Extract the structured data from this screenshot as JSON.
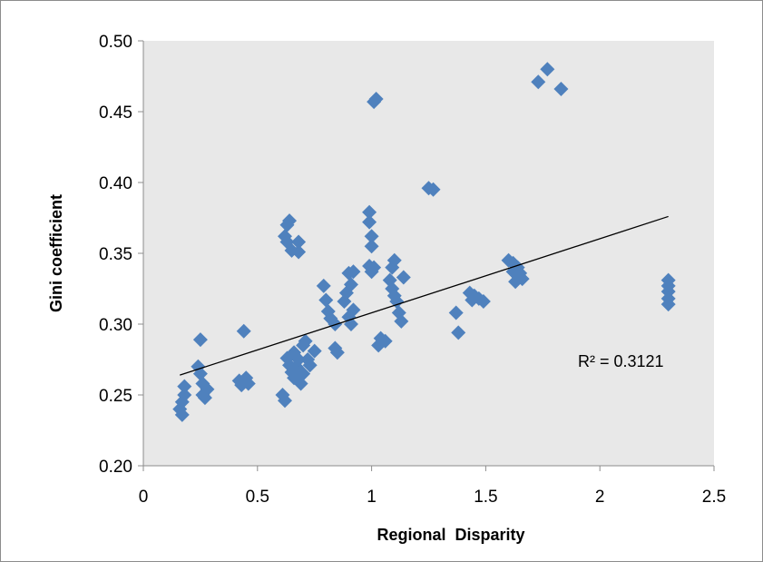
{
  "chart_data": {
    "type": "scatter",
    "title": "",
    "xlabel": "Regional  Disparity",
    "ylabel": "Gini coefficient",
    "xlim": [
      0,
      2.5
    ],
    "ylim": [
      0.2,
      0.5
    ],
    "x_ticks": [
      "0",
      "0.5",
      "1",
      "1.5",
      "2",
      "2.5"
    ],
    "y_ticks": [
      "0.20",
      "0.25",
      "0.30",
      "0.35",
      "0.40",
      "0.45",
      "0.50"
    ],
    "grid": false,
    "legend": "none",
    "marker": "diamond",
    "colors": {
      "plot_area": "#e8e8e8",
      "marker": "#4f81bd",
      "trendline": "#000000"
    },
    "trendline": {
      "type": "linear",
      "x": [
        0.16,
        2.3
      ],
      "y": [
        0.264,
        0.376
      ]
    },
    "annotation": "R² = 0.3121",
    "points": [
      {
        "x": 0.16,
        "y": 0.24
      },
      {
        "x": 0.17,
        "y": 0.236
      },
      {
        "x": 0.17,
        "y": 0.245
      },
      {
        "x": 0.18,
        "y": 0.25
      },
      {
        "x": 0.18,
        "y": 0.256
      },
      {
        "x": 0.24,
        "y": 0.27
      },
      {
        "x": 0.25,
        "y": 0.289
      },
      {
        "x": 0.25,
        "y": 0.265
      },
      {
        "x": 0.26,
        "y": 0.258
      },
      {
        "x": 0.26,
        "y": 0.25
      },
      {
        "x": 0.27,
        "y": 0.248
      },
      {
        "x": 0.28,
        "y": 0.254
      },
      {
        "x": 0.42,
        "y": 0.26
      },
      {
        "x": 0.43,
        "y": 0.257
      },
      {
        "x": 0.44,
        "y": 0.295
      },
      {
        "x": 0.45,
        "y": 0.262
      },
      {
        "x": 0.46,
        "y": 0.258
      },
      {
        "x": 0.61,
        "y": 0.25
      },
      {
        "x": 0.62,
        "y": 0.246
      },
      {
        "x": 0.62,
        "y": 0.362
      },
      {
        "x": 0.63,
        "y": 0.358
      },
      {
        "x": 0.63,
        "y": 0.37
      },
      {
        "x": 0.64,
        "y": 0.373
      },
      {
        "x": 0.63,
        "y": 0.276
      },
      {
        "x": 0.64,
        "y": 0.271
      },
      {
        "x": 0.65,
        "y": 0.266
      },
      {
        "x": 0.65,
        "y": 0.352
      },
      {
        "x": 0.66,
        "y": 0.28
      },
      {
        "x": 0.66,
        "y": 0.262
      },
      {
        "x": 0.67,
        "y": 0.27
      },
      {
        "x": 0.68,
        "y": 0.358
      },
      {
        "x": 0.68,
        "y": 0.351
      },
      {
        "x": 0.68,
        "y": 0.275
      },
      {
        "x": 0.69,
        "y": 0.258
      },
      {
        "x": 0.7,
        "y": 0.285
      },
      {
        "x": 0.7,
        "y": 0.265
      },
      {
        "x": 0.71,
        "y": 0.288
      },
      {
        "x": 0.72,
        "y": 0.275
      },
      {
        "x": 0.73,
        "y": 0.271
      },
      {
        "x": 0.75,
        "y": 0.281
      },
      {
        "x": 0.79,
        "y": 0.327
      },
      {
        "x": 0.8,
        "y": 0.317
      },
      {
        "x": 0.81,
        "y": 0.309
      },
      {
        "x": 0.82,
        "y": 0.304
      },
      {
        "x": 0.84,
        "y": 0.3
      },
      {
        "x": 0.84,
        "y": 0.283
      },
      {
        "x": 0.85,
        "y": 0.28
      },
      {
        "x": 0.88,
        "y": 0.316
      },
      {
        "x": 0.89,
        "y": 0.322
      },
      {
        "x": 0.9,
        "y": 0.336
      },
      {
        "x": 0.9,
        "y": 0.305
      },
      {
        "x": 0.91,
        "y": 0.328
      },
      {
        "x": 0.91,
        "y": 0.3
      },
      {
        "x": 0.92,
        "y": 0.337
      },
      {
        "x": 0.92,
        "y": 0.31
      },
      {
        "x": 0.99,
        "y": 0.379
      },
      {
        "x": 0.99,
        "y": 0.372
      },
      {
        "x": 1.0,
        "y": 0.362
      },
      {
        "x": 1.0,
        "y": 0.355
      },
      {
        "x": 0.99,
        "y": 0.341
      },
      {
        "x": 1.0,
        "y": 0.337
      },
      {
        "x": 1.01,
        "y": 0.34
      },
      {
        "x": 1.01,
        "y": 0.457
      },
      {
        "x": 1.02,
        "y": 0.459
      },
      {
        "x": 1.03,
        "y": 0.285
      },
      {
        "x": 1.04,
        "y": 0.29
      },
      {
        "x": 1.06,
        "y": 0.288
      },
      {
        "x": 1.08,
        "y": 0.331
      },
      {
        "x": 1.09,
        "y": 0.325
      },
      {
        "x": 1.09,
        "y": 0.34
      },
      {
        "x": 1.1,
        "y": 0.32
      },
      {
        "x": 1.1,
        "y": 0.345
      },
      {
        "x": 1.11,
        "y": 0.316
      },
      {
        "x": 1.12,
        "y": 0.308
      },
      {
        "x": 1.13,
        "y": 0.302
      },
      {
        "x": 1.14,
        "y": 0.333
      },
      {
        "x": 1.25,
        "y": 0.396
      },
      {
        "x": 1.27,
        "y": 0.395
      },
      {
        "x": 1.37,
        "y": 0.308
      },
      {
        "x": 1.38,
        "y": 0.294
      },
      {
        "x": 1.43,
        "y": 0.322
      },
      {
        "x": 1.44,
        "y": 0.317
      },
      {
        "x": 1.45,
        "y": 0.32
      },
      {
        "x": 1.47,
        "y": 0.318
      },
      {
        "x": 1.49,
        "y": 0.316
      },
      {
        "x": 1.6,
        "y": 0.345
      },
      {
        "x": 1.62,
        "y": 0.343
      },
      {
        "x": 1.62,
        "y": 0.337
      },
      {
        "x": 1.63,
        "y": 0.33
      },
      {
        "x": 1.64,
        "y": 0.34
      },
      {
        "x": 1.65,
        "y": 0.336
      },
      {
        "x": 1.66,
        "y": 0.332
      },
      {
        "x": 1.73,
        "y": 0.471
      },
      {
        "x": 1.77,
        "y": 0.48
      },
      {
        "x": 1.83,
        "y": 0.466
      },
      {
        "x": 2.3,
        "y": 0.331
      },
      {
        "x": 2.3,
        "y": 0.327
      },
      {
        "x": 2.3,
        "y": 0.323
      },
      {
        "x": 2.3,
        "y": 0.318
      },
      {
        "x": 2.3,
        "y": 0.314
      }
    ]
  }
}
